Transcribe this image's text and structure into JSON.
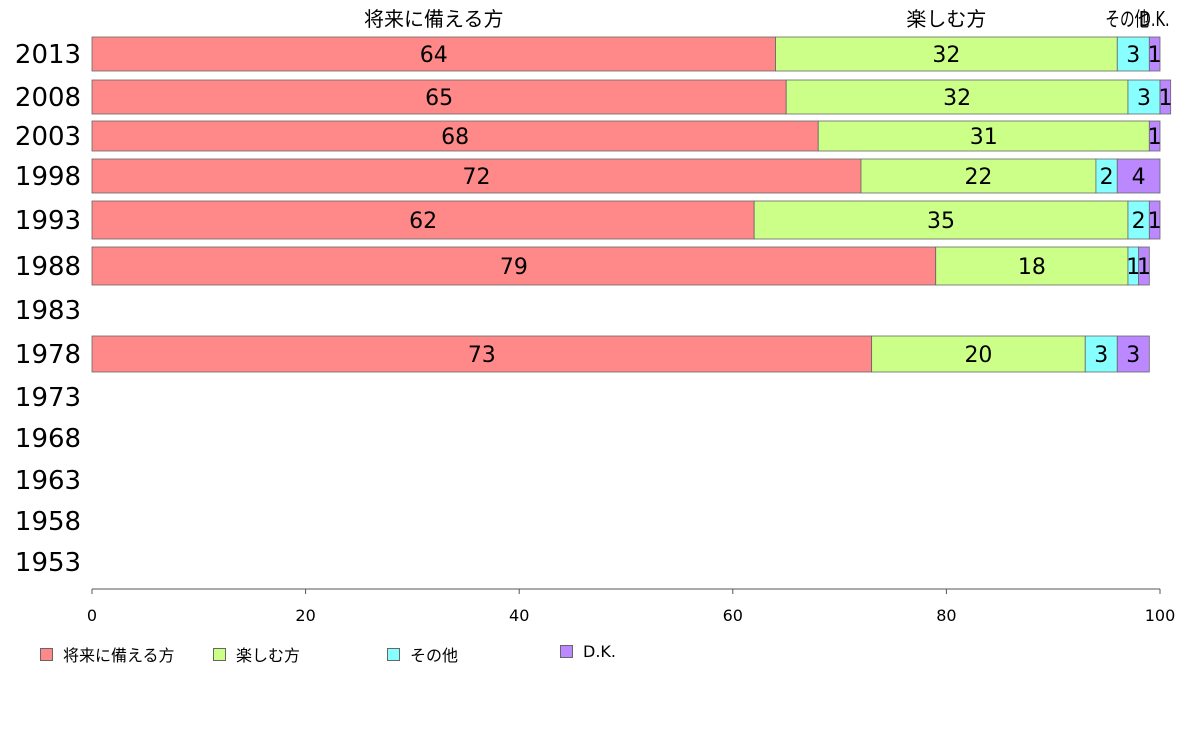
{
  "chart_data": {
    "type": "bar",
    "orientation": "horizontal",
    "stacked": true,
    "categories": [
      "2013",
      "2008",
      "2003",
      "1998",
      "1993",
      "1988",
      "1983",
      "1978",
      "1973",
      "1968",
      "1963",
      "1958",
      "1953"
    ],
    "series": [
      {
        "name": "将来に備える方",
        "color": "#ff8888",
        "values": [
          64,
          65,
          68,
          72,
          62,
          79,
          null,
          73,
          null,
          null,
          null,
          null,
          null
        ],
        "labels": [
          "64",
          "65",
          "68",
          "72",
          "62",
          "79",
          "",
          "73",
          "",
          "",
          "",
          "",
          ""
        ]
      },
      {
        "name": "楽しむ方",
        "color": "#ccff88",
        "values": [
          32,
          32,
          31,
          22,
          35,
          18,
          null,
          20,
          null,
          null,
          null,
          null,
          null
        ],
        "labels": [
          "32",
          "32",
          "31",
          "22",
          "35",
          "18",
          "",
          "20",
          "",
          "",
          "",
          "",
          ""
        ]
      },
      {
        "name": "その他",
        "color": "#88ffff",
        "values": [
          3,
          3,
          0,
          2,
          2,
          1,
          null,
          3,
          null,
          null,
          null,
          null,
          null
        ],
        "labels": [
          "3",
          "3",
          "",
          "2",
          "2",
          "1",
          "",
          "3",
          "",
          "",
          "",
          "",
          ""
        ]
      },
      {
        "name": "D.K.",
        "color": "#bb88ff",
        "values": [
          1,
          1,
          1,
          4,
          1,
          1,
          null,
          3,
          null,
          null,
          null,
          null,
          null
        ],
        "labels": [
          "1",
          "1",
          "1",
          "4",
          "1",
          "1",
          "",
          "3",
          "",
          "",
          "",
          "",
          ""
        ]
      }
    ],
    "top_labels": [
      "将来に備える方",
      "楽しむ方",
      "その他",
      "D.K."
    ],
    "x_ticks": [
      "0",
      "20",
      "40",
      "60",
      "80",
      "100"
    ],
    "xlim": [
      0,
      100
    ],
    "xlabel": "",
    "ylabel": "",
    "title": "",
    "grid": false,
    "legend_position": "bottom-left"
  }
}
